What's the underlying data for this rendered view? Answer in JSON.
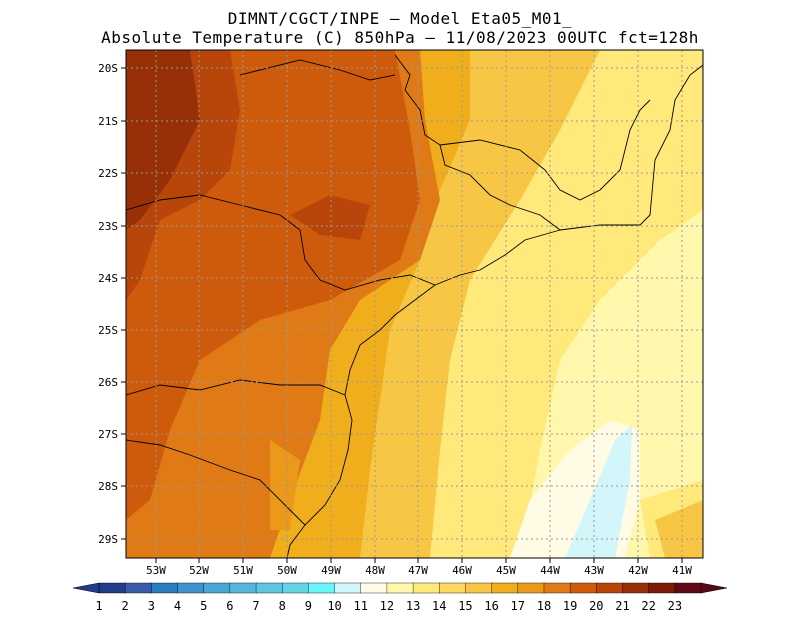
{
  "header": {
    "line1": "DIMNT/CGCT/INPE –  Model Eta05_M01_",
    "line2": "Absolute Temperature (C) 850hPa –  11/08/2023 00UTC fct=128h"
  },
  "map": {
    "lat_labels": [
      "20S",
      "21S",
      "22S",
      "23S",
      "24S",
      "25S",
      "26S",
      "27S",
      "28S",
      "29S"
    ],
    "lon_labels": [
      "53W",
      "52W",
      "51W",
      "50W",
      "49W",
      "48W",
      "47W",
      "46W",
      "45W",
      "44W",
      "43W",
      "42W",
      "41W"
    ]
  },
  "colorbar": {
    "labels": [
      "1",
      "2",
      "3",
      "4",
      "5",
      "6",
      "7",
      "8",
      "9",
      "10",
      "11",
      "12",
      "13",
      "14",
      "15",
      "16",
      "17",
      "18",
      "19",
      "20",
      "21",
      "22",
      "23"
    ],
    "colors": [
      "#233c8c",
      "#3a5ba8",
      "#2b7dc0",
      "#3c93cf",
      "#4aa6d6",
      "#56b7dd",
      "#5ec6e0",
      "#63d4e6",
      "#66f6fc",
      "#d3f6fb",
      "#fffbe4",
      "#fff7ab",
      "#ffe97a",
      "#ffd864",
      "#f8c645",
      "#f0ad1c",
      "#ec981a",
      "#e07a16",
      "#ce5a0c",
      "#b8460a",
      "#973006",
      "#7c1b08",
      "#600818"
    ],
    "under_color": "#243b8a",
    "over_color": "#5a0818"
  },
  "colors": {
    "field_hot": "#b8460a",
    "field_mid": "#e07a16",
    "field_warm": "#f0ad1c",
    "field_mild": "#ffe97a",
    "field_cool": "#fff7ab",
    "field_cold": "#d3f6fb"
  }
}
